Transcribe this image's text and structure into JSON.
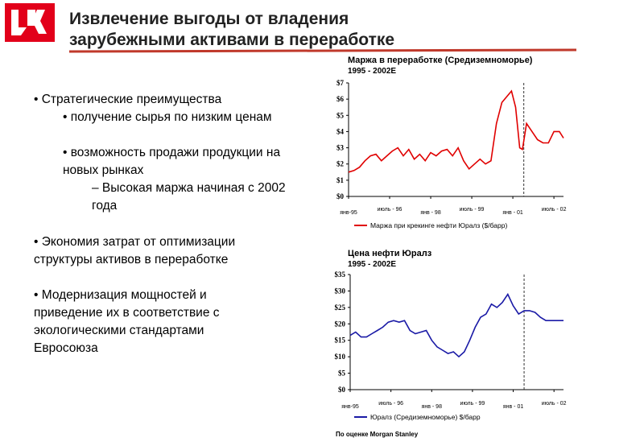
{
  "header": {
    "title_line1": "Извлечение выгоды от владения",
    "title_line2": "зарубежными активами в переработке"
  },
  "bullets": [
    {
      "level": 0,
      "text": "• Стратегические преимущества"
    },
    {
      "level": 1,
      "text": "• получение сырья по низким ценам"
    },
    {
      "level": 1,
      "text": "• возможность продажи продукции на новых рынках"
    },
    {
      "level": 2,
      "text": "– Высокая маржа начиная с 2002 года"
    },
    {
      "level": 0,
      "text": "• Экономия затрат от оптимизации структуры активов в переработке"
    },
    {
      "level": 0,
      "text": "• Модернизация мощностей и приведение их в соответствие с экологическими стандартами Евросоюза"
    }
  ],
  "source": "По оценке Morgan Stanley",
  "chart_data": [
    {
      "type": "line",
      "title": "Маржа в переработке (Средиземноморье)",
      "subtitle": "1995 - 2002E",
      "x": [
        1995.0,
        1995.2,
        1995.4,
        1995.6,
        1995.8,
        1996.0,
        1996.2,
        1996.4,
        1996.6,
        1996.8,
        1997.0,
        1997.2,
        1997.4,
        1997.6,
        1997.8,
        1998.0,
        1998.2,
        1998.4,
        1998.6,
        1998.8,
        1999.0,
        1999.2,
        1999.4,
        1999.6,
        1999.8,
        2000.0,
        2000.2,
        2000.4,
        2000.6,
        2000.8,
        2000.95,
        2001.1,
        2001.25,
        2001.35,
        2001.5,
        2001.7,
        2001.9,
        2002.1,
        2002.3,
        2002.5,
        2002.7,
        2002.85
      ],
      "series": [
        {
          "name": "Маржа при крекинге нефти Юралз ($/барр)",
          "color": "#e00000",
          "values": [
            1.5,
            1.6,
            1.8,
            2.2,
            2.5,
            2.6,
            2.2,
            2.5,
            2.8,
            3.0,
            2.5,
            2.9,
            2.3,
            2.6,
            2.2,
            2.7,
            2.5,
            2.8,
            2.9,
            2.5,
            3.0,
            2.2,
            1.7,
            2.0,
            2.3,
            2.0,
            2.2,
            4.5,
            5.8,
            6.2,
            6.5,
            5.5,
            3.0,
            2.9,
            4.5,
            4.0,
            3.5,
            3.3,
            3.3,
            4.0,
            4.0,
            3.6
          ]
        }
      ],
      "xlim": [
        1995,
        2002.85
      ],
      "xticks": [
        {
          "value": 1995,
          "label": "янв-95"
        },
        {
          "value": 1996.5,
          "label": "июль - 96"
        },
        {
          "value": 1998,
          "label": "янв - 98"
        },
        {
          "value": 1999.5,
          "label": "июль - 99"
        },
        {
          "value": 2001,
          "label": "янв - 01"
        },
        {
          "value": 2002.5,
          "label": "июль - 02"
        }
      ],
      "ylim": [
        0,
        7
      ],
      "yticks": [
        {
          "value": 0,
          "label": "$0"
        },
        {
          "value": 1,
          "label": "$1"
        },
        {
          "value": 2,
          "label": "$2"
        },
        {
          "value": 3,
          "label": "$3"
        },
        {
          "value": 4,
          "label": "$4"
        },
        {
          "value": 5,
          "label": "$5"
        },
        {
          "value": 6,
          "label": "$6"
        },
        {
          "value": 7,
          "label": "$7"
        }
      ],
      "divider_x": 2001.4
    },
    {
      "type": "line",
      "title": "Цена нефти Юралз",
      "subtitle": "1995 - 2002E",
      "x": [
        1995.0,
        1995.2,
        1995.4,
        1995.6,
        1995.8,
        1996.0,
        1996.2,
        1996.4,
        1996.6,
        1996.8,
        1997.0,
        1997.2,
        1997.4,
        1997.6,
        1997.8,
        1998.0,
        1998.2,
        1998.4,
        1998.6,
        1998.8,
        1999.0,
        1999.2,
        1999.4,
        1999.6,
        1999.8,
        2000.0,
        2000.2,
        2000.4,
        2000.6,
        2000.8,
        2001.0,
        2001.2,
        2001.4,
        2001.6,
        2001.8,
        2002.0,
        2002.2,
        2002.5,
        2002.85
      ],
      "series": [
        {
          "name": "Юралз (Средиземноморье) $/барр",
          "color": "#1a1aa6",
          "values": [
            16.5,
            17.5,
            16,
            16,
            17,
            18,
            19,
            20.5,
            21,
            20.5,
            21,
            18,
            17,
            17.5,
            18,
            15,
            13,
            12,
            11,
            11.5,
            10,
            11.5,
            15,
            19,
            22,
            23,
            26,
            25,
            26.5,
            29,
            25.5,
            23,
            24,
            24,
            23.5,
            22,
            21,
            21,
            21
          ]
        }
      ],
      "xlim": [
        1995,
        2002.85
      ],
      "xticks": [
        {
          "value": 1995,
          "label": "янв-95"
        },
        {
          "value": 1996.5,
          "label": "июль - 96"
        },
        {
          "value": 1998,
          "label": "янв - 98"
        },
        {
          "value": 1999.5,
          "label": "июль - 99"
        },
        {
          "value": 2001,
          "label": "янв - 01"
        },
        {
          "value": 2002.5,
          "label": "июль - 02"
        }
      ],
      "ylim": [
        0,
        35
      ],
      "yticks": [
        {
          "value": 0,
          "label": "$0"
        },
        {
          "value": 5,
          "label": "$5"
        },
        {
          "value": 10,
          "label": "$10"
        },
        {
          "value": 15,
          "label": "$15"
        },
        {
          "value": 20,
          "label": "$20"
        },
        {
          "value": 25,
          "label": "$25"
        },
        {
          "value": 30,
          "label": "$30"
        },
        {
          "value": 35,
          "label": "$35"
        }
      ],
      "divider_x": 2001.4
    }
  ]
}
